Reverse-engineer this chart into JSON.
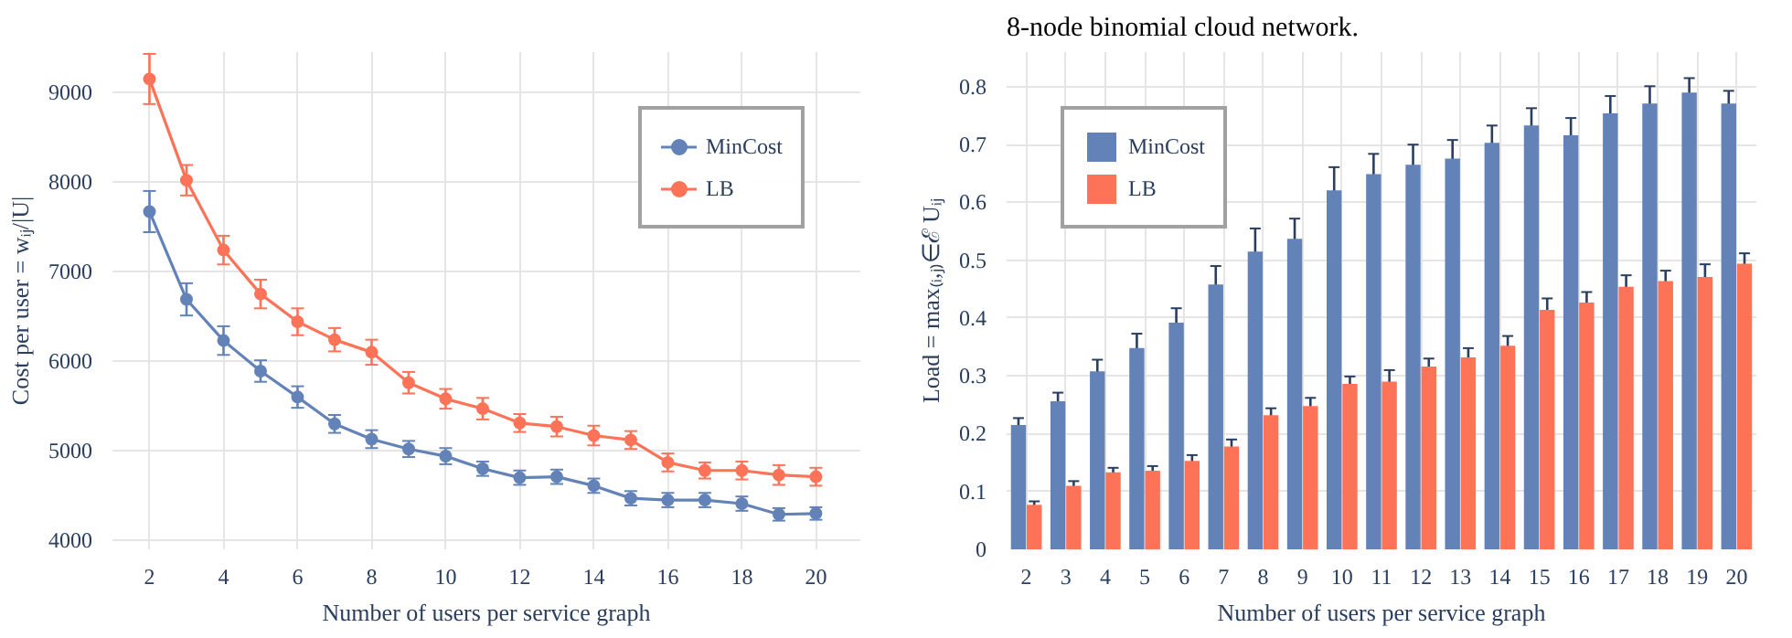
{
  "chart_data": [
    {
      "type": "line",
      "xlabel": "Number of users per service graph",
      "ylabel": "Cost per user = wᵢⱼ/|U|",
      "x": [
        2,
        3,
        4,
        5,
        6,
        7,
        8,
        9,
        10,
        11,
        12,
        13,
        14,
        15,
        16,
        17,
        18,
        19,
        20
      ],
      "xlim": [
        1,
        21.2
      ],
      "xticks": [
        2,
        4,
        6,
        8,
        10,
        12,
        14,
        16,
        18,
        20
      ],
      "ylim": [
        3900,
        9450
      ],
      "yticks": [
        4000,
        5000,
        6000,
        7000,
        8000,
        9000
      ],
      "grid": true,
      "legend": "top right",
      "marker": "circle",
      "line_style": "solid",
      "series": [
        {
          "name": "MinCost",
          "color": "#6383b8",
          "values": [
            7670,
            6690,
            6230,
            5890,
            5600,
            5300,
            5130,
            5020,
            4940,
            4800,
            4700,
            4710,
            4610,
            4470,
            4450,
            4450,
            4410,
            4290,
            4300
          ],
          "errors": [
            230,
            180,
            160,
            120,
            120,
            100,
            100,
            90,
            90,
            80,
            80,
            80,
            80,
            80,
            80,
            80,
            80,
            70,
            70
          ]
        },
        {
          "name": "LB",
          "color": "#fc7358",
          "values": [
            9150,
            8020,
            7240,
            6750,
            6440,
            6240,
            6100,
            5760,
            5580,
            5470,
            5310,
            5270,
            5170,
            5120,
            4870,
            4780,
            4780,
            4730,
            4710
          ],
          "errors": [
            280,
            170,
            160,
            160,
            150,
            130,
            140,
            120,
            110,
            120,
            100,
            110,
            110,
            100,
            100,
            90,
            100,
            110,
            100
          ]
        }
      ]
    },
    {
      "type": "bar",
      "annotations": [
        "8-node binomial cloud network."
      ],
      "xlabel": "Number of users per service graph",
      "ylabel": "Load = max₍ᵢ,ⱼ₎∈ℰ Uᵢⱼ",
      "categories": [
        "2",
        "3",
        "4",
        "5",
        "6",
        "7",
        "8",
        "9",
        "10",
        "11",
        "12",
        "13",
        "14",
        "15",
        "16",
        "17",
        "18",
        "19",
        "20"
      ],
      "ylim": [
        0,
        0.86
      ],
      "yticks": [
        0,
        0.1,
        0.2,
        0.3,
        0.4,
        0.5,
        0.6,
        0.7,
        0.8
      ],
      "grid": true,
      "legend": "top left",
      "series": [
        {
          "name": "MinCost",
          "color": "#6383b8",
          "values": [
            0.215,
            0.256,
            0.308,
            0.348,
            0.392,
            0.458,
            0.515,
            0.537,
            0.621,
            0.649,
            0.665,
            0.676,
            0.703,
            0.733,
            0.716,
            0.754,
            0.771,
            0.79,
            0.771
          ],
          "errors": [
            0.012,
            0.015,
            0.02,
            0.025,
            0.025,
            0.032,
            0.04,
            0.035,
            0.04,
            0.035,
            0.035,
            0.032,
            0.03,
            0.03,
            0.03,
            0.03,
            0.03,
            0.025,
            0.022
          ]
        },
        {
          "name": "LB",
          "color": "#fc7358",
          "values": [
            0.077,
            0.11,
            0.133,
            0.136,
            0.153,
            0.178,
            0.232,
            0.248,
            0.286,
            0.29,
            0.316,
            0.332,
            0.352,
            0.414,
            0.427,
            0.454,
            0.464,
            0.471,
            0.494
          ],
          "errors": [
            0.006,
            0.008,
            0.008,
            0.008,
            0.01,
            0.012,
            0.012,
            0.014,
            0.013,
            0.02,
            0.014,
            0.016,
            0.017,
            0.02,
            0.018,
            0.02,
            0.018,
            0.022,
            0.018
          ]
        }
      ]
    }
  ]
}
